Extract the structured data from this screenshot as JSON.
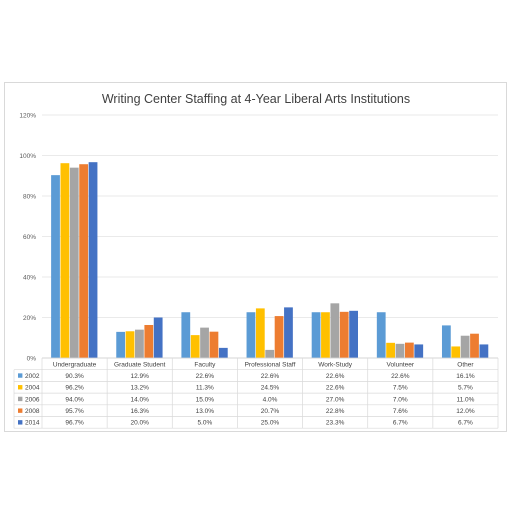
{
  "chart_data": {
    "type": "bar",
    "title": "Writing Center Staffing at 4-Year Liberal Arts Institutions",
    "xlabel": "",
    "ylabel": "",
    "ylim": [
      0,
      120
    ],
    "yticks": [
      "0%",
      "20%",
      "40%",
      "60%",
      "80%",
      "100%",
      "120%"
    ],
    "grid": true,
    "legend": "data-table-left",
    "categories": [
      "Undergraduate",
      "Graduate Student",
      "Faculty",
      "Professional Staff",
      "Work-Study",
      "Volunteer",
      "Other"
    ],
    "series": [
      {
        "name": "2002",
        "color": "#5b9bd5",
        "values": [
          90.3,
          12.9,
          22.6,
          22.6,
          22.6,
          22.6,
          16.1
        ],
        "labels": [
          "90.3%",
          "12.9%",
          "22.6%",
          "22.6%",
          "22.6%",
          "22.6%",
          "16.1%"
        ]
      },
      {
        "name": "2004",
        "color": "#ffc000",
        "values": [
          96.2,
          13.2,
          11.3,
          24.5,
          22.6,
          7.5,
          5.7
        ],
        "labels": [
          "96.2%",
          "13.2%",
          "11.3%",
          "24.5%",
          "22.6%",
          "7.5%",
          "5.7%"
        ]
      },
      {
        "name": "2006",
        "color": "#a5a5a5",
        "values": [
          94.0,
          14.0,
          15.0,
          4.0,
          27.0,
          7.0,
          11.0
        ],
        "labels": [
          "94.0%",
          "14.0%",
          "15.0%",
          "4.0%",
          "27.0%",
          "7.0%",
          "11.0%"
        ]
      },
      {
        "name": "2008",
        "color": "#ed7d31",
        "values": [
          95.7,
          16.3,
          13.0,
          20.7,
          22.8,
          7.6,
          12.0
        ],
        "labels": [
          "95.7%",
          "16.3%",
          "13.0%",
          "20.7%",
          "22.8%",
          "7.6%",
          "12.0%"
        ]
      },
      {
        "name": "2014",
        "color": "#4472c4",
        "values": [
          96.7,
          20.0,
          5.0,
          25.0,
          23.3,
          6.7,
          6.7
        ],
        "labels": [
          "96.7%",
          "20.0%",
          "5.0%",
          "25.0%",
          "23.3%",
          "6.7%",
          "6.7%"
        ]
      }
    ]
  }
}
